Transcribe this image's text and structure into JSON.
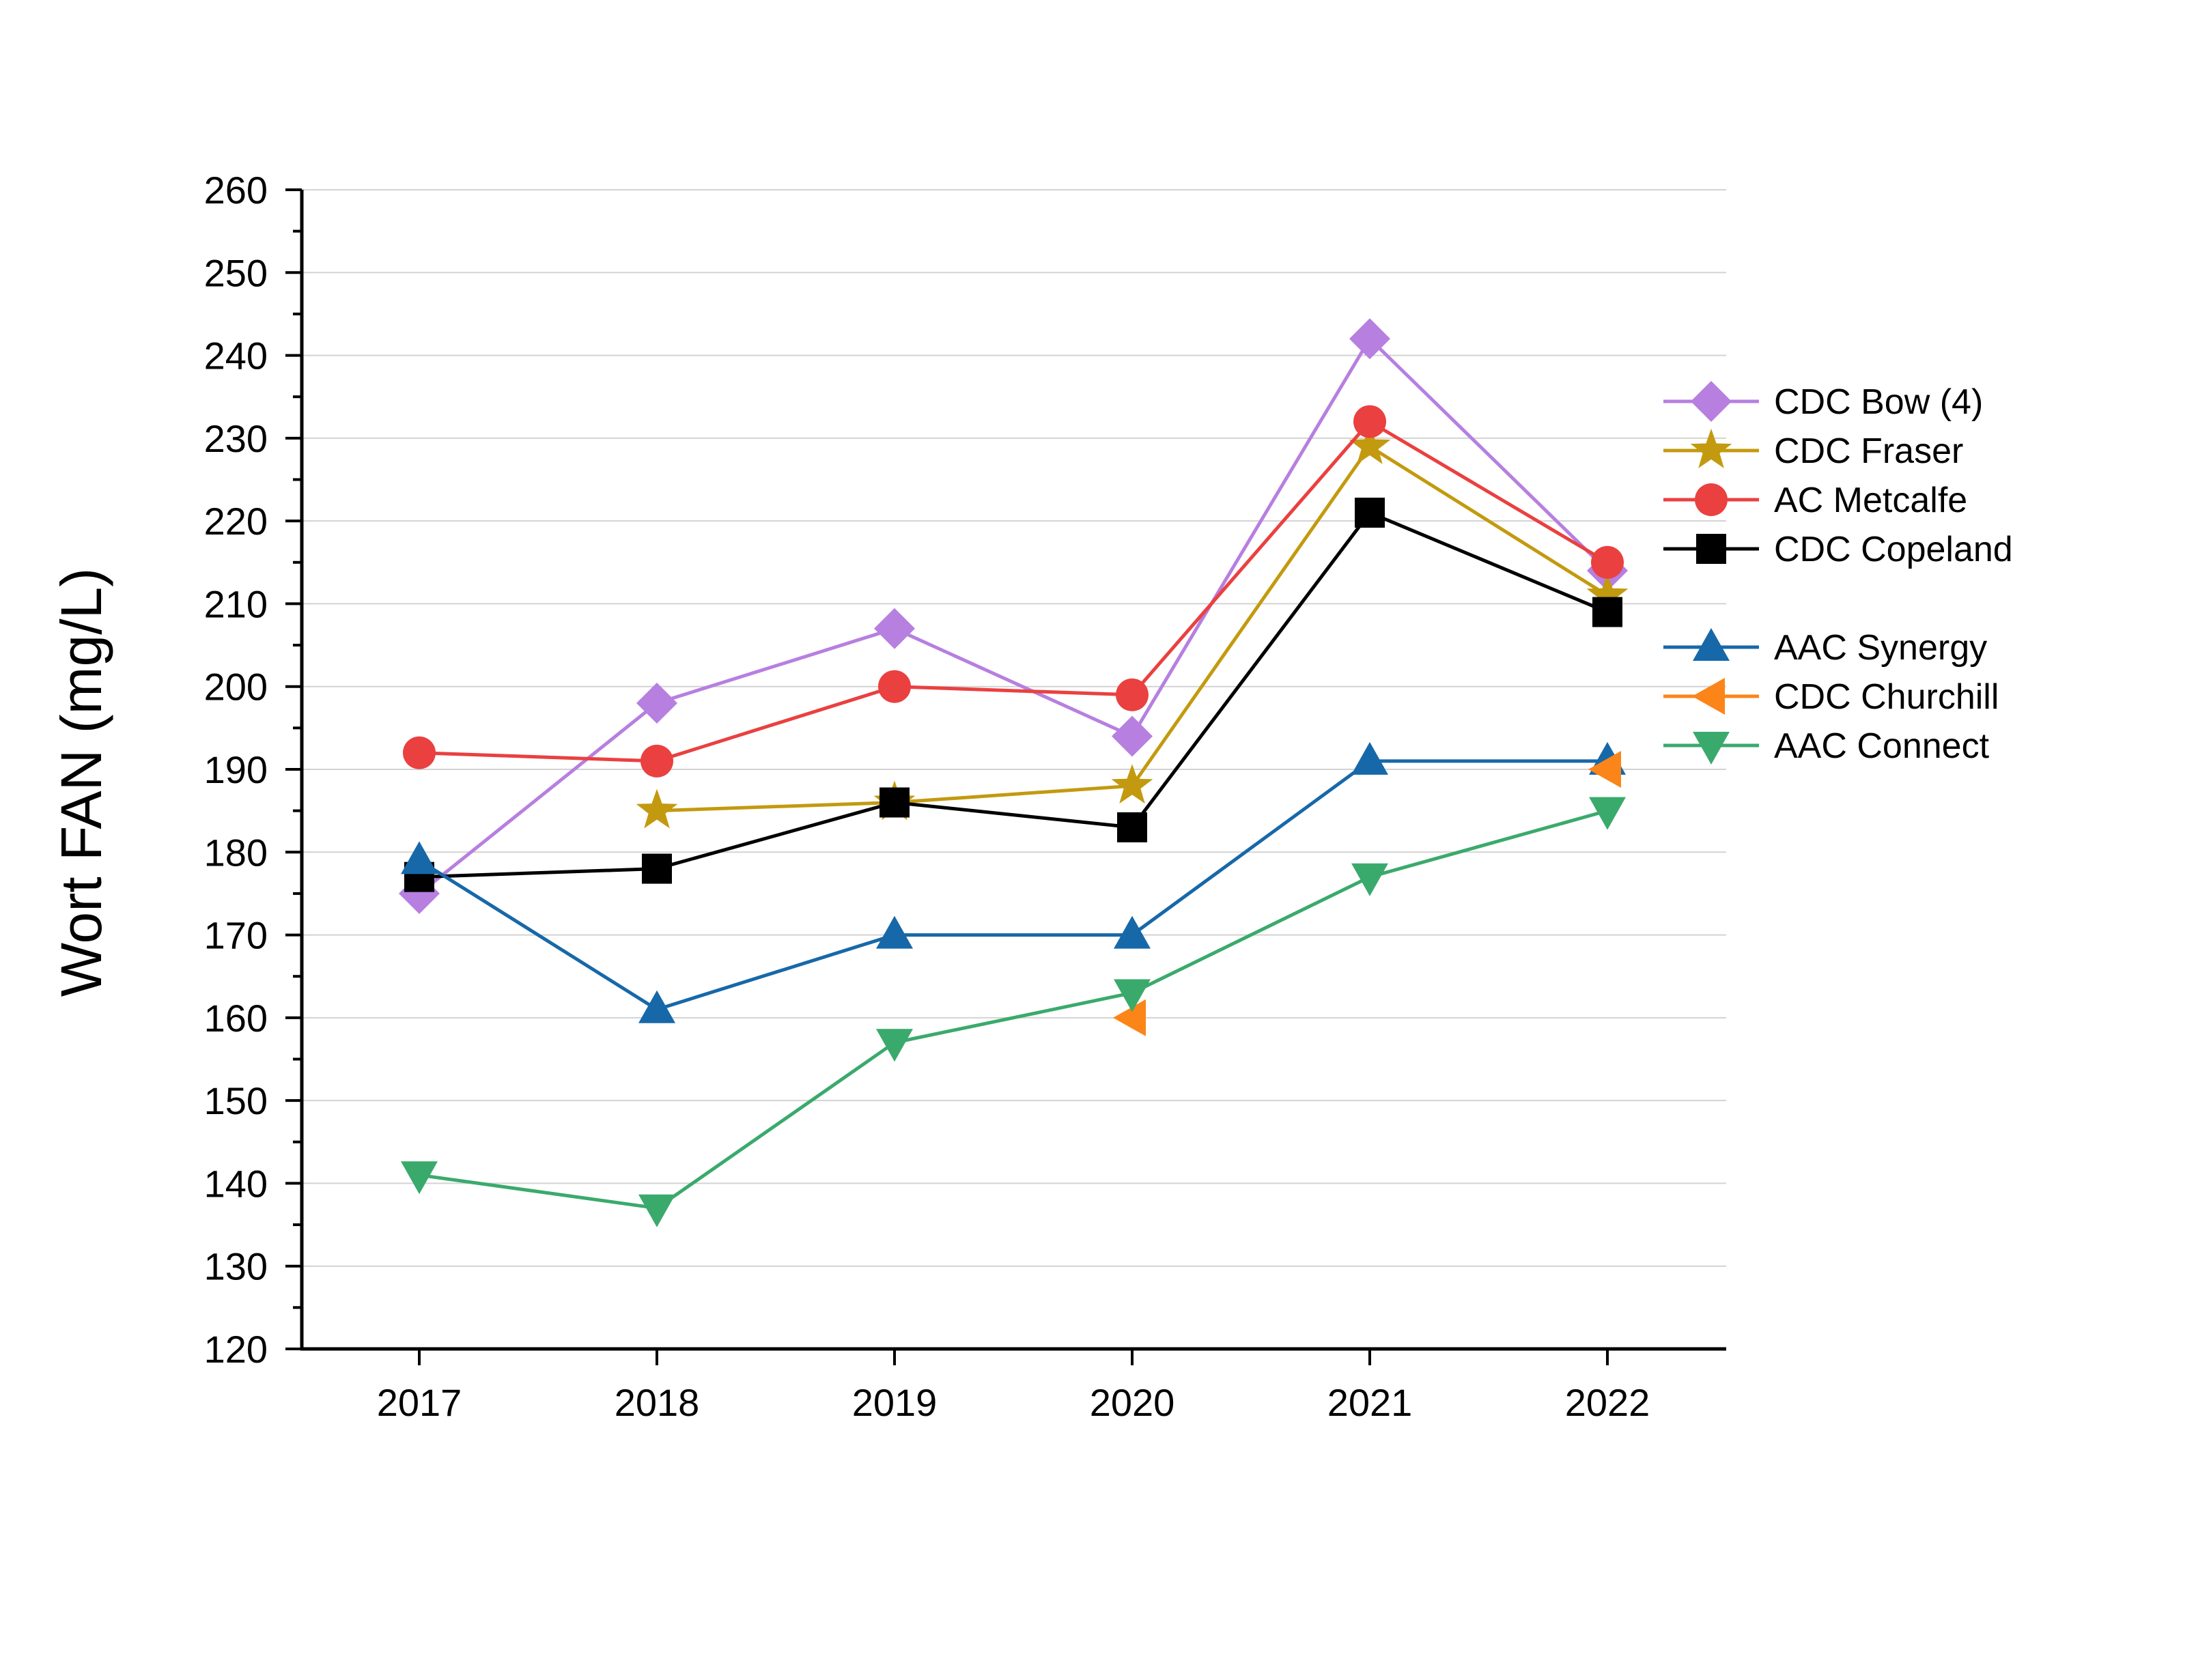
{
  "chart_data": {
    "type": "line",
    "title": "",
    "xlabel": "",
    "ylabel": "Wort FAN (mg/L)",
    "ylim": [
      120,
      260
    ],
    "y_major_step": 10,
    "y_minor_step": 5,
    "grid": true,
    "legend_position": "right",
    "categories": [
      "2017",
      "2018",
      "2019",
      "2020",
      "2021",
      "2022"
    ],
    "series": [
      {
        "name": "CDC Bow  (4)",
        "color": "#b77fe0",
        "marker": "diamond",
        "values": [
          175,
          198,
          207,
          194,
          242,
          214
        ]
      },
      {
        "name": "CDC Fraser",
        "color": "#c39a0f",
        "marker": "star",
        "values": [
          null,
          185,
          186,
          188,
          229,
          211
        ]
      },
      {
        "name": "AC Metcalfe",
        "color": "#ea4040",
        "marker": "circle",
        "values": [
          192,
          191,
          200,
          199,
          232,
          215
        ]
      },
      {
        "name": "CDC Copeland",
        "color": "#000000",
        "marker": "square",
        "values": [
          177,
          178,
          186,
          183,
          221,
          209
        ]
      },
      {
        "name": "AAC Synergy",
        "color": "#1768a8",
        "marker": "triangle-up",
        "values": [
          179,
          161,
          170,
          170,
          191,
          191
        ]
      },
      {
        "name": "CDC Churchill",
        "color": "#fb8518",
        "marker": "triangle-left",
        "line": false,
        "values": [
          null,
          null,
          null,
          160,
          null,
          190
        ]
      },
      {
        "name": "AAC Connect",
        "color": "#3aaa6c",
        "marker": "triangle-down",
        "values": [
          141,
          137,
          157,
          163,
          177,
          185
        ]
      }
    ]
  }
}
